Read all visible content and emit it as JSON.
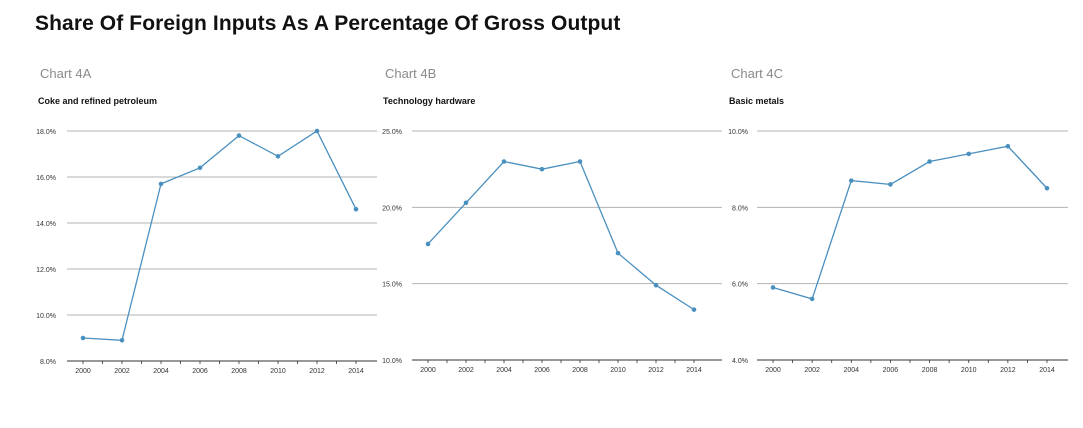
{
  "page": {
    "title": "Share Of Foreign Inputs As A Percentage Of Gross Output"
  },
  "panels": [
    {
      "label": "Chart 4A",
      "subtitle": "Coke and refined petroleum"
    },
    {
      "label": "Chart 4B",
      "subtitle": "Technology hardware"
    },
    {
      "label": "Chart 4C",
      "subtitle": "Basic metals"
    }
  ],
  "colors": {
    "series": "#4a90bf",
    "grid": "#b3b3b3",
    "axis": "#333333",
    "label": "#8a8a8a"
  },
  "chart_data": [
    {
      "type": "line",
      "title": "Coke and refined petroleum",
      "x": [
        2000,
        2001,
        2002,
        2003,
        2004,
        2005,
        2006,
        2007,
        2008,
        2009,
        2010,
        2011,
        2012,
        2013,
        2014
      ],
      "x_ticks": [
        "2000",
        "2002",
        "2004",
        "2006",
        "2008",
        "2010",
        "2012",
        "2014"
      ],
      "values": [
        9.0,
        null,
        8.9,
        null,
        15.7,
        null,
        16.4,
        null,
        17.8,
        null,
        16.9,
        null,
        18.0,
        null,
        14.6
      ],
      "y_ticks": [
        "8.0%",
        "10.0%",
        "12.0%",
        "14.0%",
        "16.0%",
        "18.0%"
      ],
      "ylim": [
        8,
        18
      ],
      "grid": true
    },
    {
      "type": "line",
      "title": "Technology hardware",
      "x": [
        2000,
        2001,
        2002,
        2003,
        2004,
        2005,
        2006,
        2007,
        2008,
        2009,
        2010,
        2011,
        2012,
        2013,
        2014
      ],
      "x_ticks": [
        "2000",
        "2002",
        "2004",
        "2006",
        "2008",
        "2010",
        "2012",
        "2014"
      ],
      "values": [
        17.6,
        null,
        20.3,
        null,
        23.0,
        null,
        22.5,
        null,
        23.0,
        null,
        17.0,
        null,
        14.9,
        null,
        13.3
      ],
      "y_ticks": [
        "10.0%",
        "15.0%",
        "20.0%",
        "25.0%"
      ],
      "ylim": [
        10,
        25
      ],
      "grid": true
    },
    {
      "type": "line",
      "title": "Basic metals",
      "x": [
        2000,
        2001,
        2002,
        2003,
        2004,
        2005,
        2006,
        2007,
        2008,
        2009,
        2010,
        2011,
        2012,
        2013,
        2014
      ],
      "x_ticks": [
        "2000",
        "2002",
        "2004",
        "2006",
        "2008",
        "2010",
        "2012",
        "2014"
      ],
      "values": [
        5.9,
        null,
        5.6,
        null,
        8.7,
        null,
        8.6,
        null,
        9.2,
        null,
        9.4,
        null,
        9.6,
        null,
        8.5
      ],
      "y_ticks": [
        "4.0%",
        "6.0%",
        "8.0%",
        "10.0%"
      ],
      "ylim": [
        4,
        10
      ],
      "grid": true
    }
  ]
}
